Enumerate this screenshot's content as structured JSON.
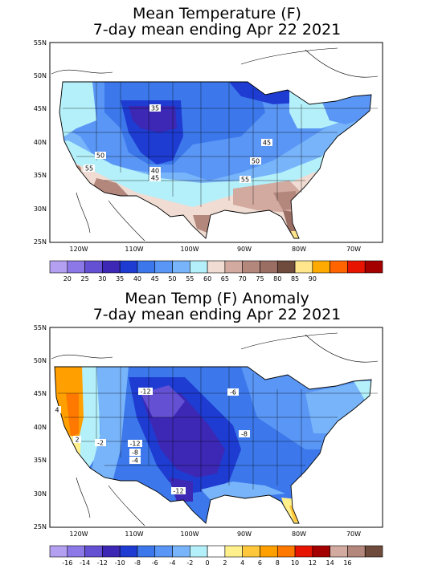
{
  "maps": [
    {
      "title_line1": "Mean Temperature (F)",
      "title_line2": "7-day mean ending Apr 22 2021",
      "lat_labels": [
        "55N",
        "50N",
        "45N",
        "40N",
        "35N",
        "30N",
        "25N"
      ],
      "lon_labels": [
        "120W",
        "110W",
        "100W",
        "90W",
        "80W",
        "70W"
      ],
      "contour_labels": [
        "35",
        "50",
        "55",
        "40",
        "45",
        "45",
        "50",
        "55"
      ],
      "colorbar": {
        "ticks": [
          "20",
          "25",
          "30",
          "35",
          "40",
          "45",
          "50",
          "55",
          "60",
          "65",
          "70",
          "75",
          "80",
          "85",
          "90"
        ],
        "colors": [
          "#b4a0f0",
          "#8c78e6",
          "#6450d2",
          "#3c28b4",
          "#1e3cd2",
          "#3c78eb",
          "#5a96f5",
          "#78b4fa",
          "#b4f0fa",
          "#f0dcd2",
          "#d2aaa0",
          "#b4877d",
          "#9b6e64",
          "#6e4b3c",
          "#ffe68c",
          "#ffaa00",
          "#ff6400",
          "#e61400",
          "#a50000"
        ]
      }
    },
    {
      "title_line1": "Mean Temp (F) Anomaly",
      "title_line2": "7-day mean ending Apr 22 2021",
      "lat_labels": [
        "55N",
        "50N",
        "45N",
        "40N",
        "35N",
        "30N",
        "25N"
      ],
      "lon_labels": [
        "120W",
        "110W",
        "100W",
        "90W",
        "80W",
        "70W"
      ],
      "contour_labels": [
        "-12",
        "-6",
        "-8",
        "-12",
        "-8",
        "-4",
        "-2",
        "2",
        "4",
        "-12"
      ],
      "colorbar": {
        "ticks": [
          "-16",
          "-14",
          "-12",
          "-10",
          "-8",
          "-6",
          "-4",
          "-2",
          "0",
          "2",
          "4",
          "6",
          "8",
          "10",
          "12",
          "14",
          "16"
        ],
        "colors": [
          "#b4a0f0",
          "#8c78e6",
          "#6450d2",
          "#3c28b4",
          "#1e3cd2",
          "#3c78eb",
          "#5a96f5",
          "#78b4fa",
          "#b4f0fa",
          "#ffffff",
          "#fff08c",
          "#ffc83c",
          "#ffa000",
          "#ff7800",
          "#e61400",
          "#a50000",
          "#d2aaa0",
          "#b4877d",
          "#6e4b3c"
        ]
      }
    }
  ]
}
